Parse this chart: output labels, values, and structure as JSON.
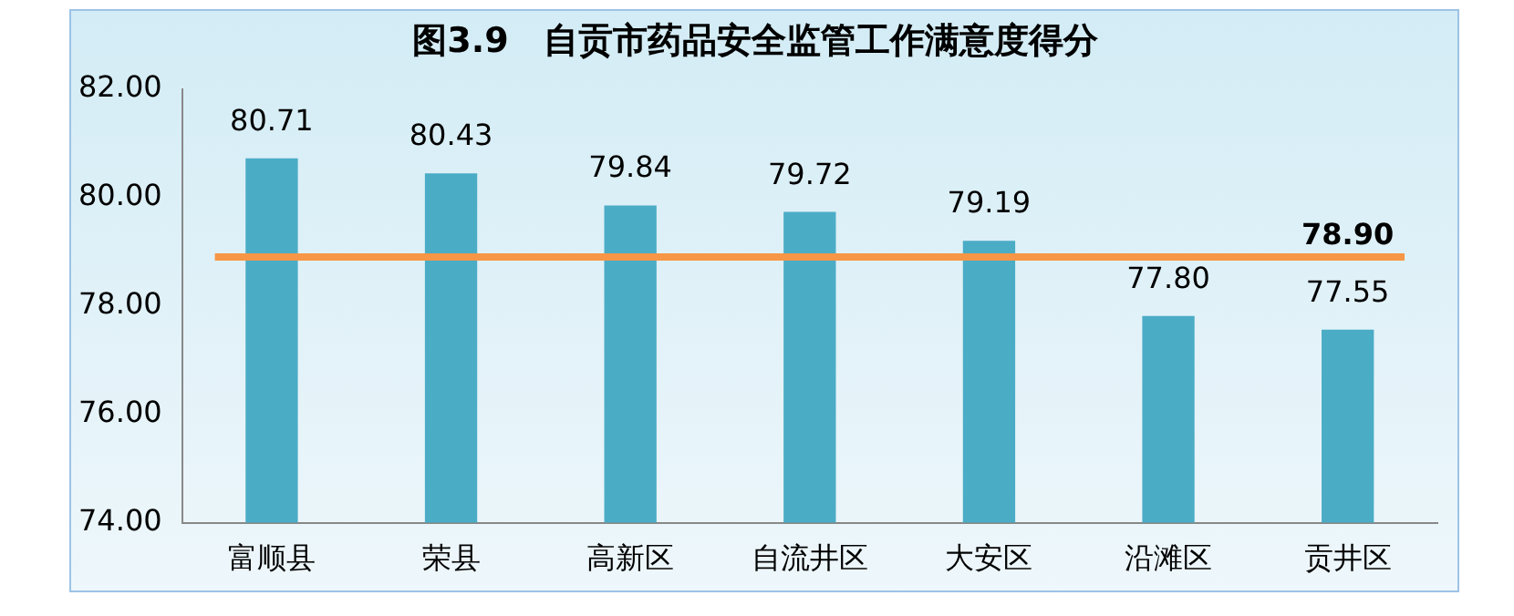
{
  "chart_data": {
    "type": "bar",
    "title": "图3.9　自贡市药品安全监管工作满意度得分",
    "categories": [
      "富顺县",
      "荣县",
      "高新区",
      "自流井区",
      "大安区",
      "沿滩区",
      "贡井区"
    ],
    "values": [
      80.71,
      80.43,
      79.84,
      79.72,
      79.19,
      77.8,
      77.55
    ],
    "value_labels": [
      "80.71",
      "80.43",
      "79.84",
      "79.72",
      "79.19",
      "77.80",
      "77.55"
    ],
    "color": "#4bacc6",
    "ylim": [
      74,
      82
    ],
    "yticks": [
      {
        "value": 74,
        "label": "74.00"
      },
      {
        "value": 76,
        "label": "76.00"
      },
      {
        "value": 78,
        "label": "78.00"
      },
      {
        "value": 80,
        "label": "80.00"
      },
      {
        "value": 82,
        "label": "82.00"
      }
    ],
    "ref_lines": [
      {
        "axis": "y",
        "value": 78.9,
        "label": "78.90",
        "color": "#f79646"
      }
    ],
    "grid": false
  }
}
